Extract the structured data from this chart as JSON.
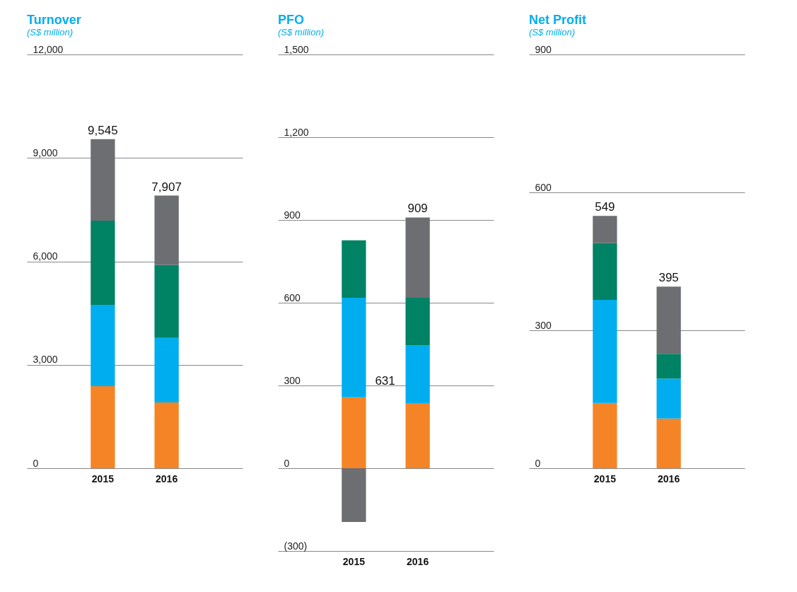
{
  "chart_data": [
    {
      "type": "bar",
      "title": "Turnover",
      "subtitle": "(S$ million)",
      "categories": [
        "2015",
        "2016"
      ],
      "stacked": true,
      "grid": "y",
      "legend": false,
      "series": [
        {
          "color": "#f58426",
          "values": [
            2380,
            1910
          ]
        },
        {
          "color": "#00aeef",
          "values": [
            2360,
            1870
          ]
        },
        {
          "color": "#008265",
          "values": [
            2440,
            2120
          ]
        },
        {
          "color": "#6d6e71",
          "values": [
            2365,
            2007
          ]
        }
      ],
      "ylim": [
        0,
        12000
      ],
      "yticks": [
        0,
        {
          "value": 3000,
          "label": "3,000"
        },
        {
          "value": 6000,
          "label": "6,000"
        },
        {
          "value": 9000,
          "label": "9,000"
        },
        {
          "value": 12000,
          "label": "12,000"
        }
      ],
      "totals": [
        "9,545",
        "7,907"
      ]
    },
    {
      "type": "bar",
      "title": "PFO",
      "subtitle": "(S$ million)",
      "categories": [
        "2015",
        "2016"
      ],
      "stacked": true,
      "grid": "y",
      "legend": false,
      "series": [
        {
          "color": "#f58426",
          "values": [
            257,
            236
          ]
        },
        {
          "color": "#00aeef",
          "values": [
            361,
            209
          ]
        },
        {
          "color": "#008265",
          "values": [
            208,
            173
          ]
        },
        {
          "color": "#6d6e71",
          "values": [
            -195,
            291
          ]
        }
      ],
      "ylim": [
        -300,
        1500
      ],
      "yticks": [
        {
          "value": -300,
          "label": "(300)"
        },
        0,
        300,
        600,
        900,
        {
          "value": 1200,
          "label": "1,200"
        },
        {
          "value": 1500,
          "label": "1,500"
        }
      ],
      "totals": [
        null,
        "909"
      ],
      "annotations": [
        "631"
      ]
    },
    {
      "type": "bar",
      "title": "Net Profit",
      "subtitle": "(S$ million)",
      "categories": [
        "2015",
        "2016"
      ],
      "stacked": true,
      "grid": "y",
      "legend": false,
      "series": [
        {
          "color": "#f58426",
          "values": [
            142,
            108
          ]
        },
        {
          "color": "#00aeef",
          "values": [
            224,
            87
          ]
        },
        {
          "color": "#008265",
          "values": [
            124,
            54
          ]
        },
        {
          "color": "#6d6e71",
          "values": [
            59,
            146
          ]
        }
      ],
      "ylim": [
        0,
        900
      ],
      "yticks": [
        0,
        300,
        600,
        900
      ],
      "totals": [
        "549",
        "395"
      ]
    }
  ]
}
